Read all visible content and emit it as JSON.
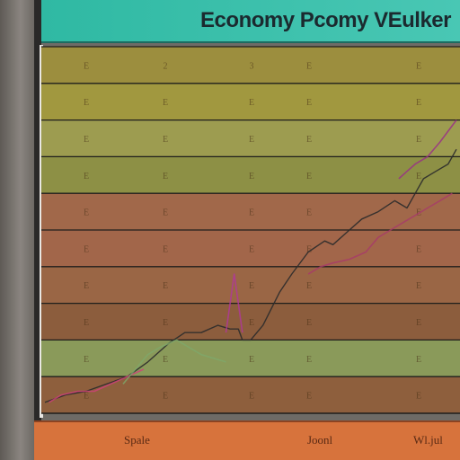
{
  "chart_data": {
    "type": "line",
    "title": "Economy Pcomy VEulker",
    "xlabel": "",
    "ylabel": "",
    "x_tick_labels": [
      "Spale",
      "Joonl",
      "Wl.jul"
    ],
    "grid": true,
    "legend": "none",
    "bands": [
      {
        "color": "#9c8e3e",
        "labels": [
          "E",
          "2",
          "3",
          "E",
          "E"
        ]
      },
      {
        "color": "#a1983f",
        "labels": [
          "E",
          "E",
          "E",
          "E",
          "E"
        ]
      },
      {
        "color": "#9d9c50",
        "labels": [
          "E",
          "E",
          "E",
          "E",
          "E"
        ]
      },
      {
        "color": "#8d9045",
        "labels": [
          "E",
          "E",
          "E",
          "E",
          "E"
        ]
      },
      {
        "color": "#a1684a",
        "labels": [
          "E",
          "E",
          "E",
          "E",
          "E"
        ]
      },
      {
        "color": "#a2664a",
        "labels": [
          "E",
          "E",
          "E",
          "E",
          "E"
        ]
      },
      {
        "color": "#9a6645",
        "labels": [
          "E",
          "E",
          "E",
          "E",
          "E"
        ]
      },
      {
        "color": "#8c5d3d",
        "labels": [
          "E",
          "E",
          "E",
          "E",
          "E"
        ]
      },
      {
        "color": "#8a9a5a",
        "labels": [
          "E",
          "E",
          "E",
          "E",
          "E"
        ]
      },
      {
        "color": "#8e5f3d",
        "labels": [
          "E",
          "E",
          "E",
          "E",
          "E"
        ]
      }
    ],
    "xlim": [
      0,
      100
    ],
    "ylim": [
      0,
      100
    ],
    "series": [
      {
        "color": "#2b2b2b",
        "x": [
          0,
          5,
          10,
          15,
          20,
          25,
          30,
          34,
          38,
          42,
          45,
          47,
          48,
          50,
          53,
          57,
          60,
          64,
          68,
          70,
          73,
          77,
          81,
          85,
          88,
          90,
          92,
          95,
          98,
          100
        ],
        "y": [
          3,
          5,
          6,
          8,
          10,
          14,
          19,
          22,
          22,
          24,
          23,
          23,
          20,
          20,
          24,
          33,
          38,
          44,
          47,
          46,
          49,
          53,
          55,
          58,
          56,
          60,
          64,
          66,
          68,
          72
        ]
      },
      {
        "color": "#d0407a",
        "x": [
          1,
          4,
          8,
          12,
          18,
          24
        ],
        "y": [
          3,
          5,
          6,
          6,
          9,
          12
        ]
      },
      {
        "color": "#b0379c",
        "x": [
          44,
          45,
          46,
          47,
          48
        ],
        "y": [
          22,
          30,
          38,
          30,
          22
        ]
      },
      {
        "color": "#a83a6a",
        "x": [
          64,
          67,
          70,
          74,
          78,
          81,
          84,
          87,
          90,
          93,
          96,
          99
        ],
        "y": [
          38,
          40,
          41,
          42,
          44,
          48,
          50,
          52,
          54,
          56,
          58,
          60
        ]
      },
      {
        "color": "#9a2b8a",
        "x": [
          86,
          88,
          90,
          93,
          96,
          100
        ],
        "y": [
          64,
          66,
          68,
          70,
          74,
          80
        ]
      },
      {
        "color": "#7ea76a",
        "x": [
          19,
          22,
          25,
          28,
          32,
          35,
          38,
          41,
          44
        ],
        "y": [
          8,
          12,
          16,
          18,
          20,
          18,
          16,
          15,
          14
        ]
      }
    ]
  }
}
